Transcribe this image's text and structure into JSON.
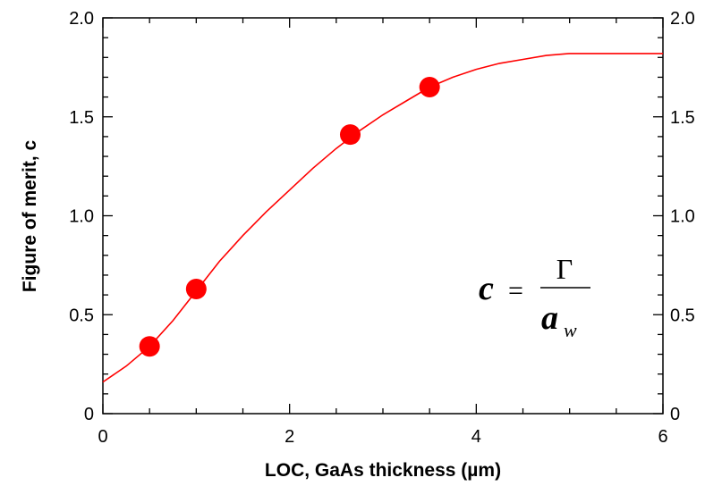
{
  "chart_data": {
    "type": "line",
    "xlabel": "LOC, GaAs thickness (µm)",
    "ylabel": "Figure of merit, c",
    "xlim": [
      0,
      6
    ],
    "ylim": [
      0,
      2.0
    ],
    "x_ticks": [
      "0",
      "2",
      "4",
      "6"
    ],
    "y_ticks": [
      "0",
      "0.5",
      "1.0",
      "1.5",
      "2.0"
    ],
    "y_ticks_right": [
      "0",
      "0.5",
      "1.0",
      "1.5",
      "2.0"
    ],
    "grid": false,
    "series": [
      {
        "type": "line",
        "color": "#ff0000",
        "x": [
          0,
          0.25,
          0.5,
          0.75,
          1.0,
          1.25,
          1.5,
          1.75,
          2.0,
          2.25,
          2.5,
          2.75,
          3.0,
          3.25,
          3.5,
          3.75,
          4.0,
          4.25,
          4.5,
          4.75,
          5.0,
          5.5,
          6.0
        ],
        "y": [
          0.16,
          0.24,
          0.34,
          0.47,
          0.62,
          0.77,
          0.9,
          1.02,
          1.13,
          1.24,
          1.34,
          1.43,
          1.51,
          1.58,
          1.65,
          1.7,
          1.74,
          1.77,
          1.79,
          1.81,
          1.82,
          1.82,
          1.82
        ]
      },
      {
        "type": "scatter",
        "color": "#ff0000",
        "x": [
          0.5,
          1.0,
          2.65,
          3.5
        ],
        "y": [
          0.34,
          0.63,
          1.41,
          1.65
        ]
      }
    ],
    "annotation": {
      "lhs": "c",
      "equals": "=",
      "numerator": "Γ",
      "denominator": "a",
      "subscript": "w"
    }
  }
}
